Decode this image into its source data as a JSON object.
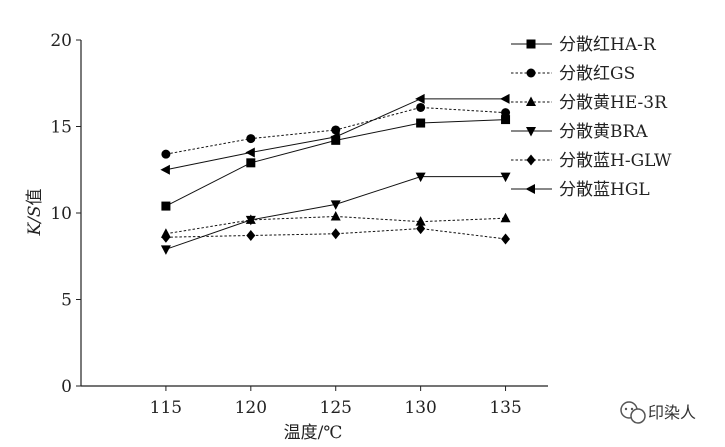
{
  "chart_data": {
    "type": "line",
    "xlabel": "温度/℃",
    "ylabel_italic": "K/S",
    "ylabel_suffix": "值",
    "x": [
      115,
      120,
      125,
      130,
      135
    ],
    "xticks": [
      "115",
      "120",
      "125",
      "130",
      "135"
    ],
    "xlim": [
      110,
      137.5
    ],
    "yticks": [
      "0",
      "5",
      "10",
      "15",
      "20"
    ],
    "ylim": [
      0,
      20
    ],
    "grid": false,
    "legend_position": "top-right",
    "series": [
      {
        "name": "分散红HA-R",
        "marker": "square",
        "dash": "solid",
        "values": [
          10.4,
          12.9,
          14.2,
          15.2,
          15.4
        ]
      },
      {
        "name": "分散红GS",
        "marker": "circle",
        "dash": "dashed",
        "values": [
          13.4,
          14.3,
          14.8,
          16.1,
          15.8
        ]
      },
      {
        "name": "分散黄HE-3R",
        "marker": "triangle-up",
        "dash": "dashed",
        "values": [
          8.8,
          9.6,
          9.8,
          9.5,
          9.7
        ]
      },
      {
        "name": "分散黄BRA",
        "marker": "triangle-down",
        "dash": "solid",
        "values": [
          7.9,
          9.6,
          10.5,
          12.1,
          12.1
        ]
      },
      {
        "name": "分散蓝H-GLW",
        "marker": "diamond",
        "dash": "dashed",
        "values": [
          8.6,
          8.7,
          8.8,
          9.1,
          8.5
        ]
      },
      {
        "name": "分散蓝HGL",
        "marker": "triangle-left",
        "dash": "solid",
        "values": [
          12.5,
          13.5,
          14.4,
          16.6,
          16.6
        ]
      }
    ]
  },
  "watermark": {
    "text": "印染人",
    "icon": "wechat-icon"
  }
}
